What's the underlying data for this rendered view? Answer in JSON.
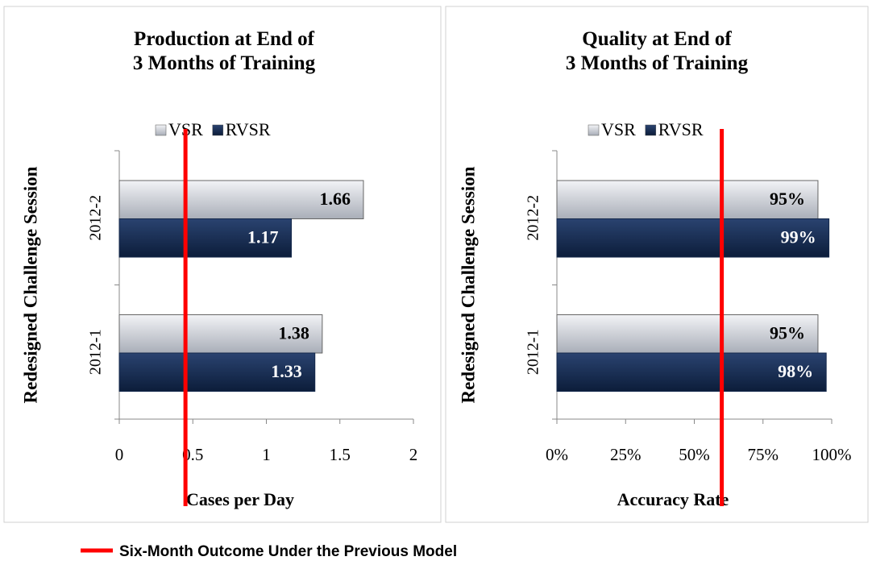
{
  "chart_data": [
    {
      "type": "bar",
      "orientation": "horizontal",
      "title": "Production at End of 3 Months of Training",
      "categories": [
        "2012-1",
        "2012-2"
      ],
      "series": [
        {
          "name": "VSR",
          "color": "#c8ccd4",
          "values": [
            1.38,
            1.66
          ]
        },
        {
          "name": "RVSR",
          "color": "#14284b",
          "values": [
            1.33,
            1.17
          ]
        }
      ],
      "xlim": [
        0,
        2
      ],
      "xticks": [
        0,
        0.5,
        1,
        1.5,
        2
      ],
      "xlabel": "Cases per Day",
      "ylabel": "Redesigned Challenge Session",
      "reference_line": 0.45,
      "reference_color": "#ff0000",
      "legend": "top"
    },
    {
      "type": "bar",
      "orientation": "horizontal",
      "title": "Quality at End of 3 Months of Training",
      "categories": [
        "2012-1",
        "2012-2"
      ],
      "series": [
        {
          "name": "VSR",
          "color": "#c8ccd4",
          "values": [
            95,
            95
          ],
          "value_labels": [
            "95%",
            "95%"
          ]
        },
        {
          "name": "RVSR",
          "color": "#14284b",
          "values": [
            98,
            99
          ],
          "value_labels": [
            "98%",
            "99%"
          ]
        }
      ],
      "xlim": [
        0,
        100
      ],
      "xticks": [
        {
          "value": 0,
          "label": "0%"
        },
        {
          "value": 25,
          "label": "25%"
        },
        {
          "value": 50,
          "label": "50%"
        },
        {
          "value": 75,
          "label": "75%"
        },
        {
          "value": 100,
          "label": "100%"
        }
      ],
      "xlabel": "Accuracy Rate",
      "ylabel": "Redesigned Challenge Session",
      "reference_line": 60,
      "reference_color": "#ff0000",
      "legend": "top"
    }
  ],
  "footer_legend": "Six-Month Outcome Under the Previous Model"
}
